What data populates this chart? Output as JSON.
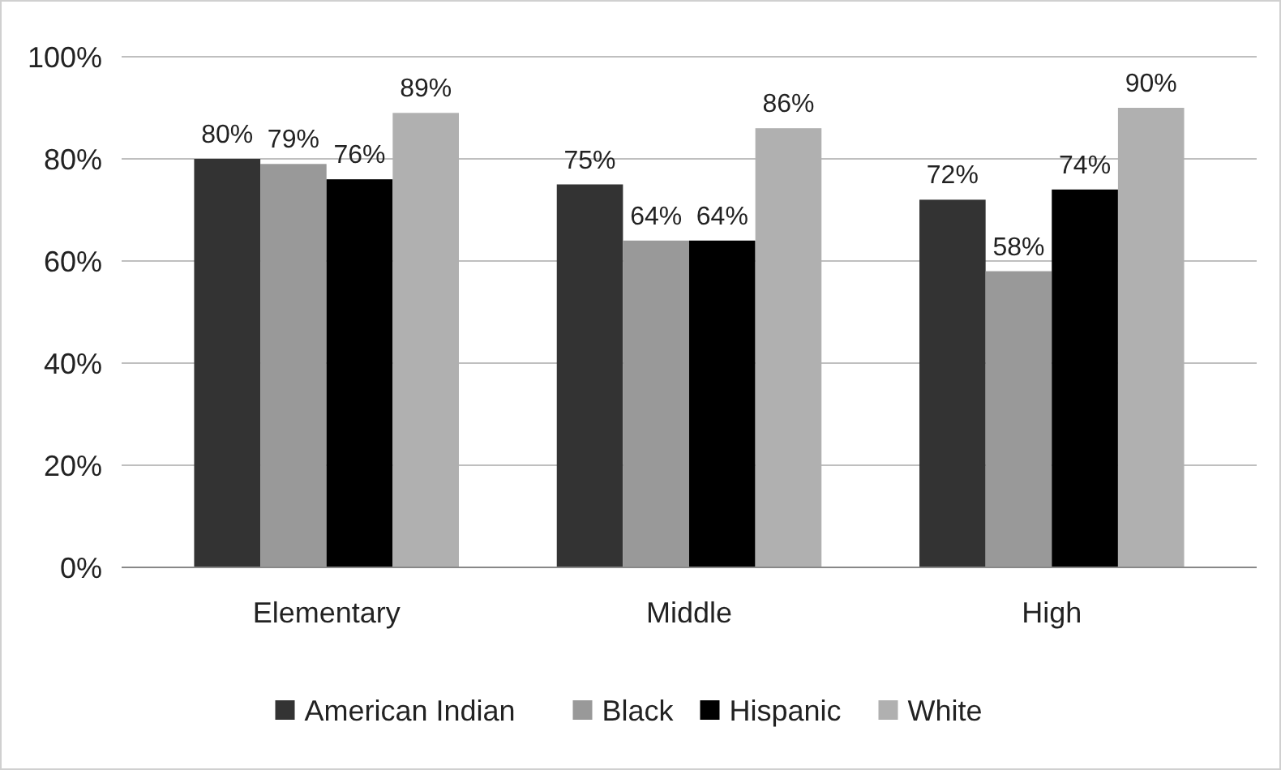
{
  "chart_data": {
    "type": "bar",
    "categories": [
      "Elementary",
      "Middle",
      "High"
    ],
    "series": [
      {
        "name": "American Indian",
        "color": "#333333",
        "values": [
          80,
          75,
          72
        ],
        "value_labels": [
          "80%",
          "75%",
          "72%"
        ]
      },
      {
        "name": "Black",
        "color": "#999999",
        "values": [
          79,
          64,
          58
        ],
        "value_labels": [
          "79%",
          "64%",
          "58%"
        ]
      },
      {
        "name": "Hispanic",
        "color": "#000000",
        "values": [
          76,
          64,
          74
        ],
        "value_labels": [
          "76%",
          "64%",
          "74%"
        ]
      },
      {
        "name": "White",
        "color": "#b0b0b0",
        "values": [
          89,
          86,
          90
        ],
        "value_labels": [
          "89%",
          "86%",
          "90%"
        ]
      }
    ],
    "ylim": [
      0,
      100
    ],
    "yticks": [
      {
        "value": 0,
        "label": "0%"
      },
      {
        "value": 20,
        "label": "20%"
      },
      {
        "value": 40,
        "label": "40%"
      },
      {
        "value": 60,
        "label": "60%"
      },
      {
        "value": 80,
        "label": "80%"
      },
      {
        "value": 100,
        "label": "100%"
      }
    ],
    "grid": "y",
    "legend": "bottom"
  }
}
